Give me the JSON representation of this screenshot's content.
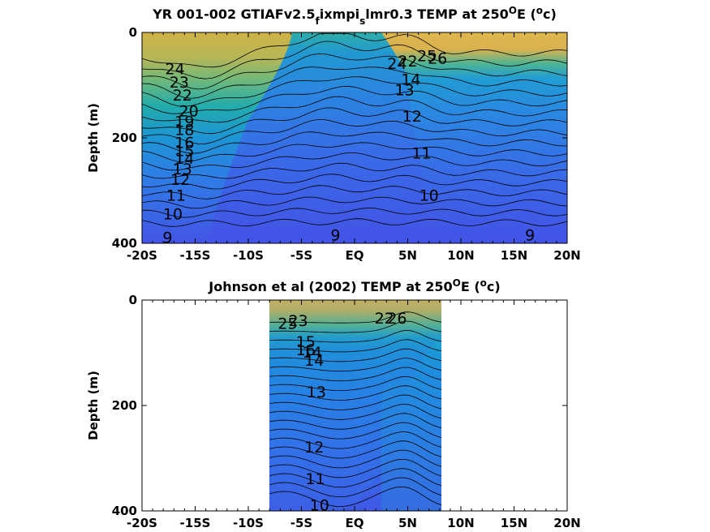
{
  "chart_data": [
    {
      "type": "heatmap",
      "title": {
        "prefix": "YR 001-002 GTIAFv2.5",
        "sub1": "f",
        "mid": "ixmpi",
        "sub2": "s",
        "rest": "lmr0.3 TEMP at 250",
        "deg": "O",
        "unit_open": "E (",
        "unit_sup": "o",
        "unit_close": "c)"
      },
      "ylabel": "Depth (m)",
      "xlim": [
        -20,
        20
      ],
      "ylim": [
        400,
        0
      ],
      "xticks": [
        -20,
        -15,
        -10,
        -5,
        0,
        5,
        10,
        15,
        20
      ],
      "xticklabels": [
        "-20S",
        "-15S",
        "-10S",
        "-5S",
        "EQ",
        "5N",
        "10N",
        "15N",
        "20N"
      ],
      "yticks": [
        0,
        200,
        400
      ],
      "yticklabels": [
        "0",
        "200",
        "400"
      ],
      "data_extent": [
        -20,
        20
      ],
      "colormap": "parula",
      "contour_labels": [
        {
          "text": "24",
          "x": -16.9,
          "y": 70
        },
        {
          "text": "23",
          "x": -16.5,
          "y": 95
        },
        {
          "text": "22",
          "x": -16.2,
          "y": 120
        },
        {
          "text": "20",
          "x": -15.6,
          "y": 150
        },
        {
          "text": "19",
          "x": -16.0,
          "y": 170
        },
        {
          "text": "18",
          "x": -16.0,
          "y": 185
        },
        {
          "text": "16",
          "x": -16.0,
          "y": 210
        },
        {
          "text": "15",
          "x": -16.0,
          "y": 225
        },
        {
          "text": "14",
          "x": -16.0,
          "y": 240
        },
        {
          "text": "13",
          "x": -16.2,
          "y": 260
        },
        {
          "text": "12",
          "x": -16.4,
          "y": 280
        },
        {
          "text": "11",
          "x": -16.8,
          "y": 310
        },
        {
          "text": "10",
          "x": -17.1,
          "y": 345
        },
        {
          "text": "9",
          "x": -17.6,
          "y": 390
        },
        {
          "text": "9",
          "x": -1.8,
          "y": 385
        },
        {
          "text": "9",
          "x": 16.5,
          "y": 385
        },
        {
          "text": "10",
          "x": 7.0,
          "y": 310
        },
        {
          "text": "11",
          "x": 6.3,
          "y": 230
        },
        {
          "text": "12",
          "x": 5.4,
          "y": 160
        },
        {
          "text": "13",
          "x": 4.7,
          "y": 110
        },
        {
          "text": "14",
          "x": 5.3,
          "y": 90
        },
        {
          "text": "24",
          "x": 4.0,
          "y": 60
        },
        {
          "text": "22",
          "x": 5.0,
          "y": 55
        },
        {
          "text": "26",
          "x": 7.8,
          "y": 50
        },
        {
          "text": "25",
          "x": 6.8,
          "y": 45
        }
      ]
    },
    {
      "type": "heatmap",
      "title": {
        "prefix": "Johnson et al (2002) TEMP at 250",
        "deg": "O",
        "unit_open": "E (",
        "unit_sup": "o",
        "unit_close": "c)"
      },
      "ylabel": "Depth (m)",
      "xlim": [
        -20,
        20
      ],
      "ylim": [
        400,
        0
      ],
      "xticks": [
        -20,
        -15,
        -10,
        -5,
        0,
        5,
        10,
        15,
        20
      ],
      "xticklabels": [
        "-20S",
        "-15S",
        "-10S",
        "-5S",
        "EQ",
        "5N",
        "10N",
        "15N",
        "20N"
      ],
      "yticks": [
        0,
        200,
        400
      ],
      "yticklabels": [
        "0",
        "200",
        "400"
      ],
      "data_extent": [
        -8,
        8.2
      ],
      "colormap": "parula",
      "contour_labels": [
        {
          "text": "25",
          "x": -6.3,
          "y": 45
        },
        {
          "text": "23",
          "x": -5.3,
          "y": 40
        },
        {
          "text": "16",
          "x": -4.6,
          "y": 95
        },
        {
          "text": "14",
          "x": -4.0,
          "y": 100
        },
        {
          "text": "15",
          "x": -4.6,
          "y": 80
        },
        {
          "text": "14",
          "x": -3.8,
          "y": 115
        },
        {
          "text": "13",
          "x": -3.6,
          "y": 175
        },
        {
          "text": "12",
          "x": -3.8,
          "y": 280
        },
        {
          "text": "11",
          "x": -3.7,
          "y": 340
        },
        {
          "text": "10",
          "x": -3.3,
          "y": 390
        },
        {
          "text": "22",
          "x": 2.8,
          "y": 35
        },
        {
          "text": "26",
          "x": 4.0,
          "y": 35
        }
      ]
    }
  ]
}
